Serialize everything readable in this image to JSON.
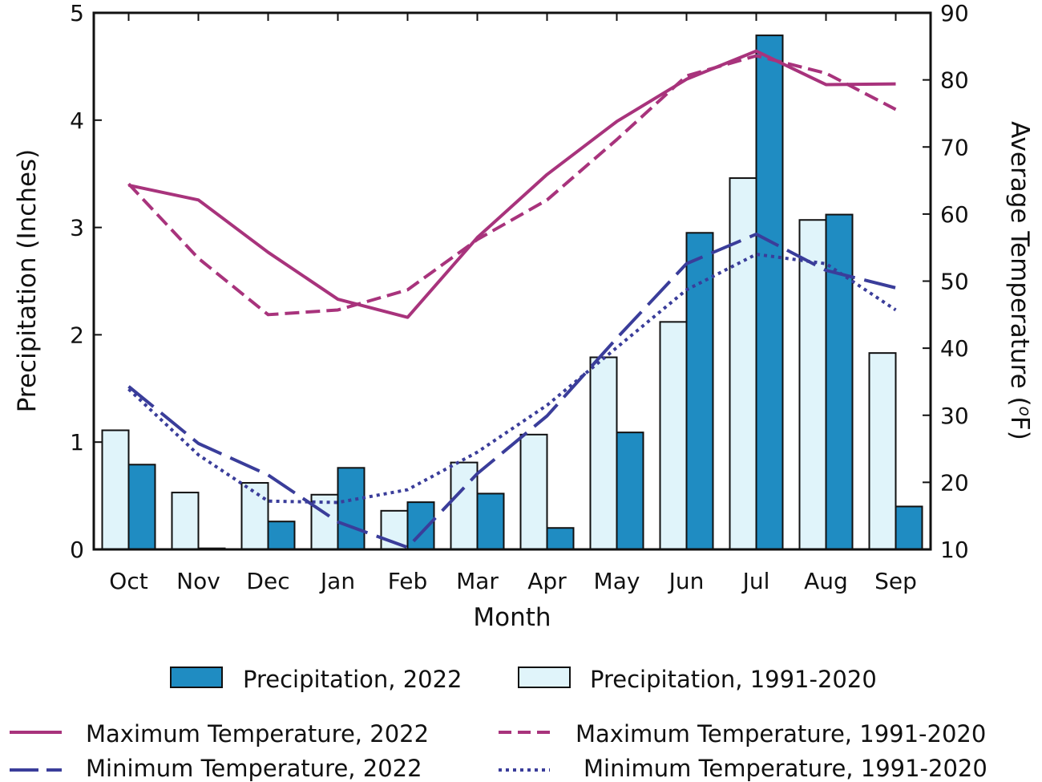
{
  "chart_data": {
    "type": "bar",
    "title": "",
    "categories": [
      "Oct",
      "Nov",
      "Dec",
      "Jan",
      "Feb",
      "Mar",
      "Apr",
      "May",
      "Jun",
      "Jul",
      "Aug",
      "Sep"
    ],
    "xlabel": "Month",
    "ylabel": "Precipitation (Inches)",
    "y2label_prefix": "Average Temperature (",
    "y2label_unit": "o",
    "y2label_suffix": "F)",
    "ylim": [
      0,
      5
    ],
    "y2lim": [
      10,
      90
    ],
    "yticks": [
      "0",
      "1",
      "2",
      "3",
      "4",
      "5"
    ],
    "y2ticks": [
      "10",
      "20",
      "30",
      "40",
      "50",
      "60",
      "70",
      "80",
      "90"
    ],
    "grid": false,
    "bar_series": [
      {
        "name": "Precipitation, 1991-2020",
        "color": "#e0f4fa",
        "values": [
          1.11,
          0.53,
          0.62,
          0.51,
          0.36,
          0.81,
          1.07,
          1.79,
          2.12,
          3.46,
          3.07,
          1.83
        ]
      },
      {
        "name": "Precipitation, 2022",
        "color": "#1f8cc2",
        "values": [
          0.79,
          0.01,
          0.26,
          0.76,
          0.44,
          0.52,
          0.2,
          1.09,
          2.95,
          4.79,
          3.12,
          0.4
        ]
      }
    ],
    "line_series": [
      {
        "name": "Maximum Temperature, 2022",
        "color": "#a8337c",
        "style": "solid",
        "values": [
          64.3,
          62.1,
          54.3,
          47.3,
          44.6,
          56.5,
          65.9,
          73.8,
          80.1,
          84.3,
          79.3,
          79.4
        ]
      },
      {
        "name": "Maximum Temperature, 1991-2020",
        "color": "#a8337c",
        "style": "dashed",
        "values": [
          64.5,
          53.4,
          45.0,
          45.7,
          48.7,
          56.2,
          62.1,
          71.1,
          80.6,
          83.6,
          81.0,
          75.6
        ]
      },
      {
        "name": "Minimum Temperature, 2022",
        "color": "#3a3d9a",
        "style": "longdash",
        "values": [
          34.3,
          25.8,
          21.1,
          14.1,
          10.3,
          21.3,
          29.9,
          41.5,
          52.6,
          57.0,
          51.6,
          49.0
        ]
      },
      {
        "name": "Minimum Temperature, 1991-2020",
        "color": "#3a3d9a",
        "style": "dotted",
        "values": [
          33.9,
          24.1,
          17.2,
          17.0,
          18.9,
          24.5,
          31.5,
          40.1,
          48.7,
          54.0,
          52.6,
          45.7
        ]
      }
    ],
    "legend": {
      "row1": [
        "Precipitation, 2022",
        "Precipitation, 1991-2020"
      ],
      "row2": [
        "Maximum Temperature, 2022",
        "Maximum Temperature, 1991-2020"
      ],
      "row3": [
        "Minimum Temperature, 2022",
        "Minimum Temperature, 1991-2020"
      ]
    }
  }
}
